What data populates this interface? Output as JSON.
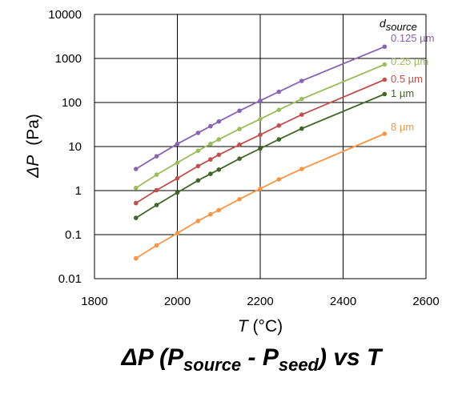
{
  "chart_data": {
    "type": "line",
    "title_parts": {
      "main": "ΔP (P",
      "sub1": "source",
      "mid": " - P",
      "sub2": "seed",
      "tail": ") vs T"
    },
    "xlabel": {
      "var": "T",
      "unit": " (°C)"
    },
    "ylabel": {
      "var": "ΔP",
      "unit": "(Pa)"
    },
    "xlim": [
      1800,
      2600
    ],
    "ylim": [
      0.01,
      10000
    ],
    "yscale": "log",
    "grid": true,
    "x_ticks": [
      "1800",
      "2000",
      "2200",
      "2400",
      "2600"
    ],
    "y_ticks": [
      "0.01",
      "0.1",
      "1",
      "10",
      "100",
      "1000",
      "10000"
    ],
    "legend_title": {
      "var": "d",
      "sub": "source"
    },
    "series": [
      {
        "name": "0.125 µm",
        "color": "#8c63b3",
        "points": [
          [
            1900,
            3.1
          ],
          [
            1950,
            6.0
          ],
          [
            2000,
            11.5
          ],
          [
            2050,
            20.5
          ],
          [
            2080,
            29
          ],
          [
            2100,
            37
          ],
          [
            2150,
            65
          ],
          [
            2200,
            110
          ],
          [
            2245,
            175
          ],
          [
            2300,
            310
          ],
          [
            2500,
            1850
          ]
        ]
      },
      {
        "name": "0.25 µm",
        "color": "#9bbd5d",
        "points": [
          [
            1900,
            1.15
          ],
          [
            1950,
            2.3
          ],
          [
            2000,
            4.3
          ],
          [
            2050,
            8.0
          ],
          [
            2080,
            11.5
          ],
          [
            2100,
            14.5
          ],
          [
            2150,
            25
          ],
          [
            2200,
            42
          ],
          [
            2245,
            68
          ],
          [
            2300,
            120
          ],
          [
            2500,
            730
          ]
        ]
      },
      {
        "name": "0.5 µm",
        "color": "#c0504d",
        "points": [
          [
            1900,
            0.52
          ],
          [
            1950,
            1.02
          ],
          [
            2000,
            1.9
          ],
          [
            2050,
            3.6
          ],
          [
            2080,
            5.1
          ],
          [
            2100,
            6.5
          ],
          [
            2150,
            11
          ],
          [
            2200,
            18.5
          ],
          [
            2245,
            30
          ],
          [
            2300,
            53
          ],
          [
            2500,
            330
          ]
        ]
      },
      {
        "name": "1 µm",
        "color": "#3f6527",
        "points": [
          [
            1900,
            0.24
          ],
          [
            1950,
            0.47
          ],
          [
            2000,
            0.9
          ],
          [
            2050,
            1.7
          ],
          [
            2080,
            2.4
          ],
          [
            2100,
            3.0
          ],
          [
            2150,
            5.3
          ],
          [
            2200,
            9.0
          ],
          [
            2245,
            14.5
          ],
          [
            2300,
            25.5
          ],
          [
            2500,
            155
          ]
        ]
      },
      {
        "name": "8 µm",
        "color": "#f79646",
        "points": [
          [
            1900,
            0.029
          ],
          [
            1950,
            0.057
          ],
          [
            2000,
            0.108
          ],
          [
            2050,
            0.205
          ],
          [
            2080,
            0.29
          ],
          [
            2100,
            0.36
          ],
          [
            2150,
            0.64
          ],
          [
            2200,
            1.1
          ],
          [
            2245,
            1.8
          ],
          [
            2300,
            3.1
          ],
          [
            2500,
            19.5
          ]
        ]
      }
    ]
  }
}
